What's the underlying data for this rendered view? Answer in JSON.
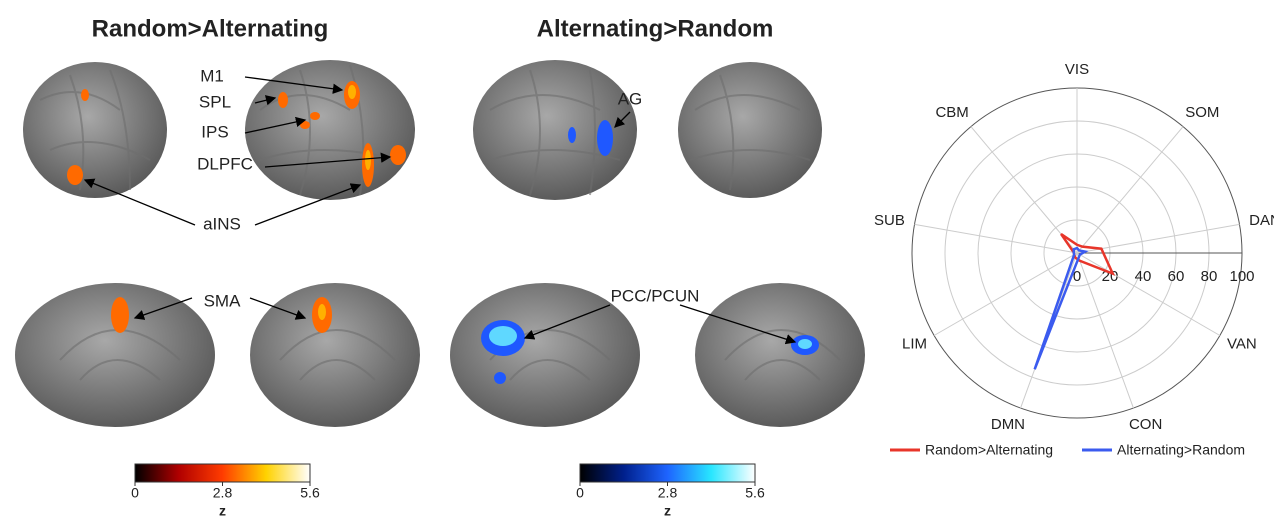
{
  "panels": [
    {
      "title": "Random>Alternating",
      "labels": [
        "M1",
        "SPL",
        "IPS",
        "DLPFC",
        "aINS",
        "SMA"
      ]
    },
    {
      "title": "Alternating>Random",
      "labels": [
        "AG",
        "PCC/PCUN"
      ]
    }
  ],
  "colorbars": [
    {
      "lim": [
        0,
        5.6
      ],
      "ticks": [
        0,
        2.8,
        5.6
      ],
      "label": "z",
      "colors": [
        "#000000",
        "#b00000",
        "#ff3c00",
        "#ffd200",
        "#ffffff"
      ]
    },
    {
      "lim": [
        0,
        5.6
      ],
      "ticks": [
        0,
        2.8,
        5.6
      ],
      "label": "z",
      "colors": [
        "#000000",
        "#00208c",
        "#1e64ff",
        "#28e6ff",
        "#ffffff"
      ]
    }
  ],
  "chart_data": {
    "type": "radar",
    "categories": [
      "VIS",
      "SOM",
      "DAN",
      "VAN",
      "CON",
      "DMN",
      "LIM",
      "SUB",
      "CBM"
    ],
    "rlim": [
      0,
      100
    ],
    "rticks": [
      0,
      20,
      40,
      60,
      80,
      100
    ],
    "grid": true,
    "legend": "bottom",
    "series": [
      {
        "name": "Random>Alternating",
        "color": "#e8352a",
        "values": [
          5,
          5,
          15,
          25,
          5,
          3,
          2,
          2,
          15
        ]
      },
      {
        "name": "Alternating>Random",
        "color": "#3b5bef",
        "values": [
          3,
          2,
          5,
          2,
          3,
          75,
          2,
          2,
          3
        ]
      }
    ]
  }
}
